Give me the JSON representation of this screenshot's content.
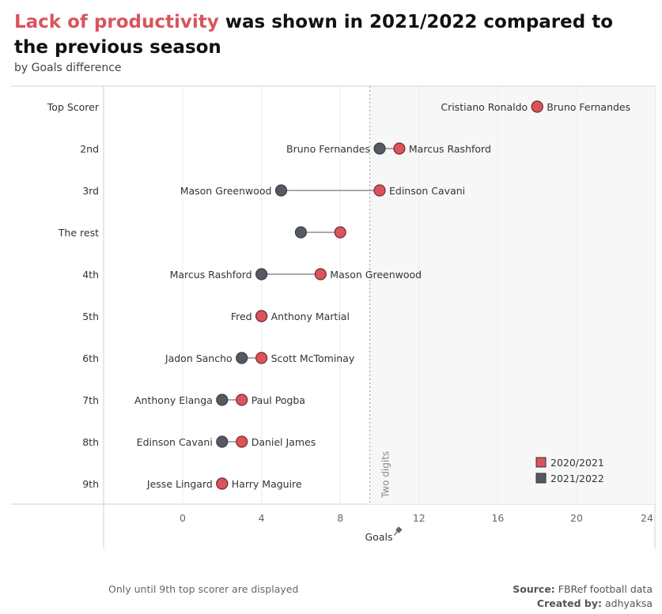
{
  "title": {
    "highlight": "Lack of productivity",
    "rest": " was shown in 2021/2022 compared to the previous season"
  },
  "subtitle": "by Goals difference",
  "footnote": "Only until 9th top scorer are displayed",
  "credits": {
    "source_label": "Source:",
    "source_value": " FBRef football data",
    "created_label": "Created by:",
    "created_value": " adhyaksa"
  },
  "colors": {
    "season_2020": "#d9545b",
    "season_2021": "#555a61",
    "highlight_title": "#d9545b",
    "shaded_region": "#f7f7f7"
  },
  "chart_data": {
    "type": "dumbbell",
    "xlabel": "Goals",
    "xlim": [
      -4,
      24
    ],
    "xticks": [
      0,
      4,
      8,
      12,
      16,
      20,
      24
    ],
    "reference_line": {
      "x": 9.5,
      "label": "Two digits"
    },
    "legend": {
      "placement": "bottom-right",
      "items": [
        {
          "name": "2020/2021",
          "color": "#d9545b"
        },
        {
          "name": "2021/2022",
          "color": "#555a61"
        }
      ]
    },
    "series_names": [
      "2020/2021",
      "2021/2022"
    ],
    "rows": [
      {
        "rank": "Top Scorer",
        "goals_2020": 18,
        "goals_2021": 18,
        "label_left": "Cristiano Ronaldo",
        "label_right": "Bruno Fernandes"
      },
      {
        "rank": "2nd",
        "goals_2020": 11,
        "goals_2021": 10,
        "label_left": "Bruno Fernandes",
        "label_right": "Marcus Rashford"
      },
      {
        "rank": "3rd",
        "goals_2020": 10,
        "goals_2021": 5,
        "label_left": "Mason Greenwood",
        "label_right": "Edinson Cavani"
      },
      {
        "rank": "The rest",
        "goals_2020": 8,
        "goals_2021": 6,
        "label_left": "",
        "label_right": ""
      },
      {
        "rank": "4th",
        "goals_2020": 7,
        "goals_2021": 4,
        "label_left": "Marcus Rashford",
        "label_right": "Mason Greenwood"
      },
      {
        "rank": "5th",
        "goals_2020": 4,
        "goals_2021": 4,
        "label_left": "Fred",
        "label_right": "Anthony Martial"
      },
      {
        "rank": "6th",
        "goals_2020": 4,
        "goals_2021": 3,
        "label_left": "Jadon Sancho",
        "label_right": "Scott McTominay"
      },
      {
        "rank": "7th",
        "goals_2020": 3,
        "goals_2021": 2,
        "label_left": "Anthony Elanga",
        "label_right": "Paul Pogba"
      },
      {
        "rank": "8th",
        "goals_2020": 3,
        "goals_2021": 2,
        "label_left": "Edinson Cavani",
        "label_right": "Daniel James"
      },
      {
        "rank": "9th",
        "goals_2020": 2,
        "goals_2021": 2,
        "label_left": "Jesse Lingard",
        "label_right": "Harry Maguire"
      }
    ]
  }
}
